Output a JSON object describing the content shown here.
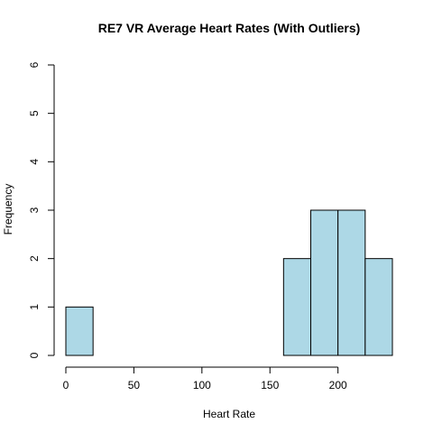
{
  "chart_data": {
    "type": "bar",
    "title": "RE7 VR Average Heart Rates (With Outliers)",
    "xlabel": "Heart Rate",
    "ylabel": "Frequency",
    "bin_width": 20,
    "bins": [
      {
        "x0": 0,
        "x1": 20,
        "count": 1
      },
      {
        "x0": 20,
        "x1": 40,
        "count": 0
      },
      {
        "x0": 40,
        "x1": 60,
        "count": 0
      },
      {
        "x0": 60,
        "x1": 80,
        "count": 0
      },
      {
        "x0": 80,
        "x1": 100,
        "count": 0
      },
      {
        "x0": 100,
        "x1": 120,
        "count": 0
      },
      {
        "x0": 120,
        "x1": 140,
        "count": 0
      },
      {
        "x0": 140,
        "x1": 160,
        "count": 0
      },
      {
        "x0": 160,
        "x1": 180,
        "count": 2
      },
      {
        "x0": 180,
        "x1": 200,
        "count": 3
      },
      {
        "x0": 200,
        "x1": 220,
        "count": 3
      },
      {
        "x0": 220,
        "x1": 240,
        "count": 2
      }
    ],
    "xlim": [
      0,
      240
    ],
    "ylim": [
      0,
      6
    ],
    "x_ticks": [
      0,
      50,
      100,
      150,
      200
    ],
    "y_ticks": [
      0,
      1,
      2,
      3,
      4,
      5,
      6
    ],
    "bar_color": "#add8e6",
    "grid": false,
    "legend": "none"
  }
}
